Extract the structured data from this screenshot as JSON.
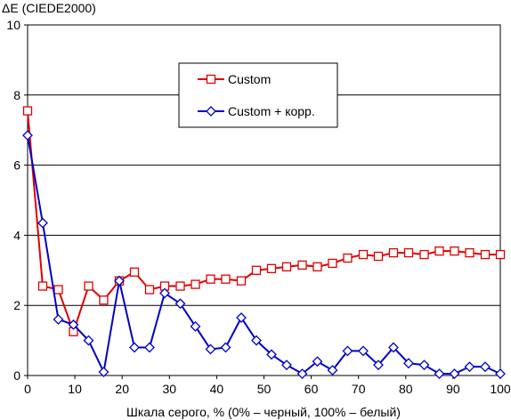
{
  "chart_data": {
    "type": "line",
    "title": "",
    "ylabel": "ΔE (CIEDE2000)",
    "xlabel": "Шкала серого, % (0% – черный, 100% – белый)",
    "xlim": [
      0,
      100
    ],
    "ylim": [
      0,
      10
    ],
    "x_ticks": [
      0,
      10,
      20,
      30,
      40,
      50,
      60,
      70,
      80,
      90,
      100
    ],
    "y_ticks": [
      0,
      2,
      4,
      6,
      8,
      10
    ],
    "grid": "horizontal",
    "legend_position": "top-center",
    "x": [
      0,
      3.2,
      6.5,
      9.7,
      12.9,
      16.1,
      19.4,
      22.6,
      25.8,
      29.0,
      32.3,
      35.5,
      38.7,
      41.9,
      45.2,
      48.4,
      51.6,
      54.8,
      58.1,
      61.3,
      64.5,
      67.7,
      71.0,
      74.2,
      77.4,
      80.6,
      83.9,
      87.1,
      90.3,
      93.5,
      96.8,
      100
    ],
    "series": [
      {
        "name": "Custom",
        "color": "#e00000",
        "marker": "square",
        "values": [
          7.55,
          2.55,
          2.45,
          1.25,
          2.55,
          2.15,
          2.7,
          2.95,
          2.45,
          2.55,
          2.55,
          2.6,
          2.75,
          2.75,
          2.7,
          3.0,
          3.05,
          3.1,
          3.15,
          3.1,
          3.2,
          3.35,
          3.45,
          3.4,
          3.5,
          3.5,
          3.45,
          3.55,
          3.55,
          3.5,
          3.45,
          3.45
        ]
      },
      {
        "name": "Custom + корр.",
        "color": "#0000c8",
        "marker": "diamond",
        "values": [
          6.85,
          4.35,
          1.6,
          1.45,
          1.0,
          0.1,
          2.7,
          0.8,
          0.8,
          2.35,
          2.05,
          1.4,
          0.75,
          0.8,
          1.65,
          1.0,
          0.6,
          0.3,
          0.05,
          0.4,
          0.15,
          0.7,
          0.7,
          0.3,
          0.8,
          0.35,
          0.3,
          0.05,
          0.05,
          0.25,
          0.25,
          0.05
        ]
      }
    ]
  }
}
